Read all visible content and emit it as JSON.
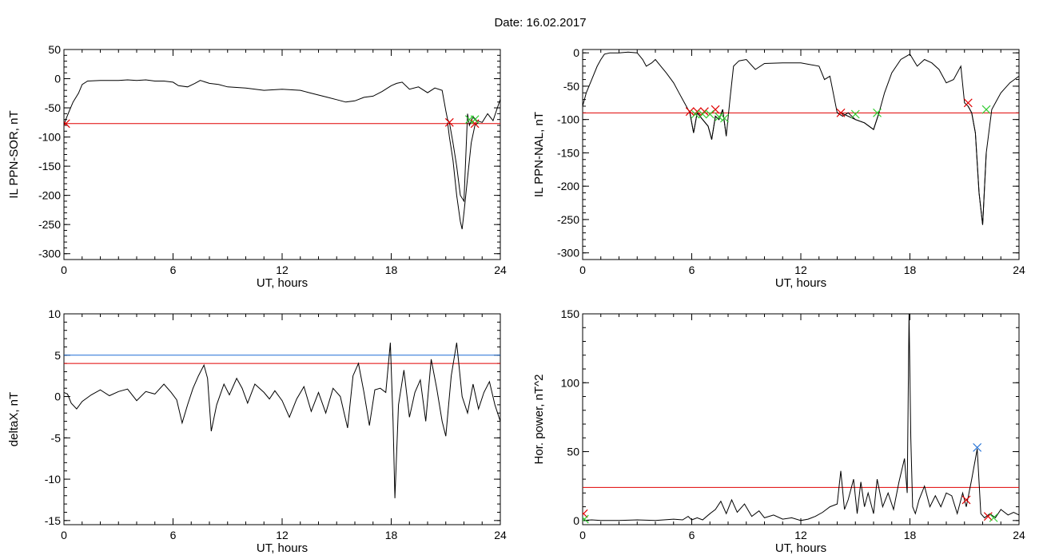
{
  "title": "Date:  16.02.2017",
  "chart_data": [
    {
      "id": "panel1",
      "type": "line",
      "ylabel": "IL PPN-SOR, nT",
      "xlabel": "UT, hours",
      "xlim": [
        0,
        24
      ],
      "ylim": [
        -310,
        50
      ],
      "xticks": [
        0,
        6,
        12,
        18,
        24
      ],
      "yticks": [
        50,
        0,
        -50,
        -100,
        -150,
        -200,
        -250,
        -300
      ],
      "thresholds": [
        {
          "y": -77,
          "color": "#e00000"
        }
      ],
      "series": [
        {
          "color": "#000000",
          "x": [
            0,
            0.1,
            0.3,
            0.5,
            0.8,
            1.0,
            1.3,
            2,
            3,
            3.5,
            4,
            4.5,
            5,
            5.5,
            6,
            6.3,
            6.8,
            7.2,
            7.5,
            8,
            8.5,
            9,
            10,
            11,
            12,
            13,
            13.5,
            14,
            14.5,
            15,
            15.5,
            16,
            16.5,
            17,
            17.5,
            18,
            18.3,
            18.6,
            19,
            19.5,
            20,
            20.4,
            20.8,
            21.0,
            21.1,
            21.2,
            21.4,
            21.6,
            21.8,
            22.0,
            22.2,
            22.3,
            22.5,
            22.7,
            23.0,
            23.3,
            23.6,
            24
          ],
          "values": [
            -80,
            -70,
            -55,
            -40,
            -25,
            -10,
            -4,
            -3,
            -3,
            -2,
            -3,
            -2,
            -4,
            -4,
            -6,
            -12,
            -14,
            -8,
            -3,
            -8,
            -10,
            -14,
            -16,
            -20,
            -18,
            -20,
            -24,
            -28,
            -32,
            -36,
            -40,
            -38,
            -32,
            -30,
            -22,
            -12,
            -8,
            -6,
            -18,
            -14,
            -24,
            -16,
            -20,
            -55,
            -70,
            -75,
            -110,
            -150,
            -200,
            -210,
            -60,
            -80,
            -65,
            -72,
            -75,
            -60,
            -72,
            -35
          ]
        },
        {
          "color": "#1f6fd6",
          "x": [
            21.1,
            21.2,
            21.4,
            21.6,
            21.8,
            21.9,
            22.0,
            22.2,
            22.4,
            22.6,
            22.8
          ],
          "values": [
            -75,
            -100,
            -140,
            -200,
            -245,
            -258,
            -230,
            -170,
            -110,
            -80,
            -75
          ]
        }
      ],
      "markers": [
        {
          "x": 0.1,
          "y": -77,
          "color": "#e00000"
        },
        {
          "x": 21.2,
          "y": -75,
          "color": "#e00000"
        },
        {
          "x": 22.6,
          "y": -77,
          "color": "#e00000"
        },
        {
          "x": 22.3,
          "y": -70,
          "color": "#33cc33"
        },
        {
          "x": 22.6,
          "y": -70,
          "color": "#33cc33"
        }
      ]
    },
    {
      "id": "panel2",
      "type": "line",
      "ylabel": "IL PPN-NAL, nT",
      "xlabel": "UT, hours",
      "xlim": [
        0,
        24
      ],
      "ylim": [
        -310,
        5
      ],
      "xticks": [
        0,
        6,
        12,
        18,
        24
      ],
      "yticks": [
        0,
        -50,
        -100,
        -150,
        -200,
        -250,
        -300
      ],
      "thresholds": [
        {
          "y": -90,
          "color": "#e00000"
        }
      ],
      "series": [
        {
          "color": "#000000",
          "x": [
            0,
            0.2,
            0.5,
            0.8,
            1.0,
            1.2,
            1.5,
            2,
            2.5,
            3,
            3.3,
            3.5,
            3.8,
            4,
            4.3,
            4.6,
            5,
            5.3,
            5.6,
            5.9,
            6.1,
            6.3,
            6.6,
            6.9,
            7.1,
            7.3,
            7.5,
            7.7,
            7.9,
            8.1,
            8.3,
            8.6,
            9,
            9.5,
            10,
            11,
            12,
            13,
            13.3,
            13.6,
            14,
            14.3,
            14.6,
            15,
            15.5,
            16,
            16.3,
            16.6,
            17,
            17.5,
            18,
            18.4,
            18.8,
            19.2,
            19.6,
            20,
            20.4,
            20.8,
            21.0,
            21.2,
            21.4,
            21.6,
            21.8,
            22.0,
            22.2,
            22.5,
            23,
            23.5,
            24
          ],
          "values": [
            -80,
            -60,
            -40,
            -20,
            -10,
            -2,
            0,
            0,
            1,
            0,
            -10,
            -20,
            -15,
            -10,
            -20,
            -30,
            -45,
            -60,
            -75,
            -90,
            -120,
            -90,
            -100,
            -110,
            -130,
            -95,
            -100,
            -85,
            -125,
            -70,
            -20,
            -12,
            -10,
            -25,
            -16,
            -15,
            -15,
            -20,
            -40,
            -35,
            -90,
            -95,
            -90,
            -100,
            -105,
            -115,
            -90,
            -60,
            -30,
            -10,
            -2,
            -20,
            -10,
            -15,
            -25,
            -45,
            -40,
            -20,
            -75,
            -80,
            -90,
            -120,
            -210,
            -258,
            -150,
            -85,
            -60,
            -45,
            -35
          ]
        },
        {
          "color": "#1f6fd6",
          "x": [
            5.9,
            6.1,
            6.3,
            6.6,
            6.9,
            7.1,
            7.3,
            7.5,
            7.7,
            7.9
          ],
          "values": [
            -90,
            -120,
            -90,
            -100,
            -110,
            -130,
            -95,
            -100,
            -85,
            -125
          ]
        },
        {
          "color": "#1f6fd6",
          "x": [
            14.2,
            14.6,
            15.0,
            15.5,
            16.0,
            16.3
          ],
          "values": [
            -90,
            -95,
            -100,
            -105,
            -115,
            -90
          ]
        },
        {
          "color": "#1f6fd6",
          "x": [
            21.2,
            21.4,
            21.6,
            21.8,
            22.0,
            22.2
          ],
          "values": [
            -80,
            -90,
            -120,
            -210,
            -258,
            -150
          ]
        }
      ],
      "markers": [
        {
          "x": 5.9,
          "y": -88,
          "color": "#e00000"
        },
        {
          "x": 6.3,
          "y": -88,
          "color": "#e00000"
        },
        {
          "x": 6.7,
          "y": -88,
          "color": "#e00000"
        },
        {
          "x": 7.3,
          "y": -85,
          "color": "#e00000"
        },
        {
          "x": 14.2,
          "y": -90,
          "color": "#e00000"
        },
        {
          "x": 21.2,
          "y": -75,
          "color": "#e00000"
        },
        {
          "x": 6.2,
          "y": -92,
          "color": "#33cc33"
        },
        {
          "x": 6.6,
          "y": -92,
          "color": "#33cc33"
        },
        {
          "x": 7.0,
          "y": -92,
          "color": "#33cc33"
        },
        {
          "x": 7.5,
          "y": -96,
          "color": "#33cc33"
        },
        {
          "x": 7.8,
          "y": -98,
          "color": "#33cc33"
        },
        {
          "x": 15.0,
          "y": -92,
          "color": "#33cc33"
        },
        {
          "x": 16.2,
          "y": -90,
          "color": "#33cc33"
        },
        {
          "x": 22.2,
          "y": -85,
          "color": "#33cc33"
        }
      ]
    },
    {
      "id": "panel3",
      "type": "line",
      "ylabel": "deltaX, nT",
      "xlabel": "UT, hours",
      "xlim": [
        0,
        24
      ],
      "ylim": [
        -15.5,
        10
      ],
      "xticks": [
        0,
        6,
        12,
        18,
        24
      ],
      "yticks": [
        10,
        5,
        0,
        -5,
        -10,
        -15
      ],
      "thresholds": [
        {
          "y": 5,
          "color": "#1f6fd6"
        },
        {
          "y": 4,
          "color": "#e00000"
        }
      ],
      "series": [
        {
          "color": "#000000",
          "x": [
            0,
            0.2,
            0.4,
            0.7,
            1.0,
            1.5,
            2,
            2.5,
            3,
            3.5,
            4,
            4.5,
            5,
            5.5,
            5.9,
            6.2,
            6.5,
            6.8,
            7.1,
            7.4,
            7.7,
            7.9,
            8.1,
            8.4,
            8.8,
            9.1,
            9.5,
            9.8,
            10.1,
            10.5,
            11,
            11.3,
            11.6,
            12,
            12.4,
            12.8,
            13.2,
            13.6,
            14,
            14.4,
            14.8,
            15.2,
            15.6,
            15.9,
            16.2,
            16.5,
            16.8,
            17.1,
            17.4,
            17.7,
            17.95,
            18.1,
            18.2,
            18.4,
            18.7,
            19,
            19.3,
            19.6,
            19.9,
            20.2,
            20.5,
            20.8,
            21.0,
            21.3,
            21.6,
            21.9,
            22.2,
            22.5,
            22.8,
            23.1,
            23.4,
            23.7,
            24
          ],
          "values": [
            0.5,
            0.3,
            -0.8,
            -1.5,
            -0.6,
            0.2,
            0.8,
            0.1,
            0.6,
            0.9,
            -0.5,
            0.6,
            0.3,
            1.5,
            0.5,
            -0.4,
            -3.2,
            -1.0,
            1.0,
            2.5,
            3.8,
            2.2,
            -4.2,
            -1.0,
            1.5,
            0.2,
            2.2,
            1.0,
            -0.8,
            1.5,
            0.5,
            -0.3,
            0.7,
            -0.5,
            -2.5,
            -0.3,
            1.2,
            -1.8,
            0.5,
            -2.0,
            1.0,
            0.0,
            -3.8,
            2.5,
            4.0,
            0.5,
            -3.5,
            0.8,
            1.0,
            0.5,
            6.5,
            -3.0,
            -12.3,
            -1.0,
            3.2,
            -2.5,
            0.5,
            2.0,
            -3.0,
            4.5,
            1.0,
            -3.0,
            -4.8,
            2.5,
            6.5,
            0.0,
            -2.0,
            1.5,
            -1.5,
            0.5,
            1.8,
            -1.0,
            -3.0
          ]
        }
      ],
      "markers": []
    },
    {
      "id": "panel4",
      "type": "line",
      "ylabel": "Hor. power, nT^2",
      "xlabel": "UT, hours",
      "xlim": [
        0,
        24
      ],
      "ylim": [
        -3,
        150
      ],
      "xticks": [
        0,
        6,
        12,
        18,
        24
      ],
      "yticks": [
        150,
        100,
        50,
        0
      ],
      "thresholds": [
        {
          "y": 24,
          "color": "#e00000"
        }
      ],
      "series": [
        {
          "color": "#000000",
          "x": [
            0,
            0.5,
            1,
            2,
            3,
            4,
            5,
            5.5,
            5.8,
            6,
            6.3,
            6.6,
            7,
            7.3,
            7.6,
            7.9,
            8.2,
            8.5,
            8.9,
            9.3,
            9.7,
            10,
            10.5,
            11,
            11.5,
            12,
            12.4,
            12.8,
            13.2,
            13.6,
            14,
            14.2,
            14.4,
            14.6,
            14.9,
            15.1,
            15.3,
            15.5,
            15.7,
            16,
            16.2,
            16.5,
            16.8,
            17.1,
            17.4,
            17.7,
            17.85,
            17.95,
            18.05,
            18.15,
            18.3,
            18.5,
            18.8,
            19.1,
            19.4,
            19.7,
            20,
            20.3,
            20.6,
            20.9,
            21.1,
            21.4,
            21.7,
            21.9,
            22.1,
            22.4,
            22.7,
            23,
            23.4,
            23.7,
            24
          ],
          "values": [
            0,
            0.5,
            0,
            0,
            0.5,
            0,
            1,
            0.5,
            3,
            0.5,
            2,
            0.5,
            5,
            8,
            14,
            5,
            15,
            6,
            12,
            3,
            7,
            2,
            4,
            1,
            2,
            0,
            1,
            3,
            6,
            10,
            12,
            36,
            8,
            15,
            30,
            5,
            28,
            10,
            20,
            5,
            30,
            10,
            20,
            8,
            28,
            45,
            20,
            150,
            60,
            10,
            5,
            15,
            25,
            10,
            18,
            10,
            20,
            18,
            5,
            20,
            10,
            30,
            52,
            5,
            2,
            5,
            2,
            8,
            4,
            6,
            4
          ]
        }
      ],
      "markers": [
        {
          "x": 0.05,
          "y": 5,
          "color": "#e00000"
        },
        {
          "x": 0.1,
          "y": 1,
          "color": "#33cc33"
        },
        {
          "x": 21.1,
          "y": 15,
          "color": "#e00000"
        },
        {
          "x": 21.7,
          "y": 53,
          "color": "#1f6fd6"
        },
        {
          "x": 22.3,
          "y": 3,
          "color": "#e00000"
        },
        {
          "x": 22.6,
          "y": 2,
          "color": "#33cc33"
        }
      ]
    }
  ]
}
